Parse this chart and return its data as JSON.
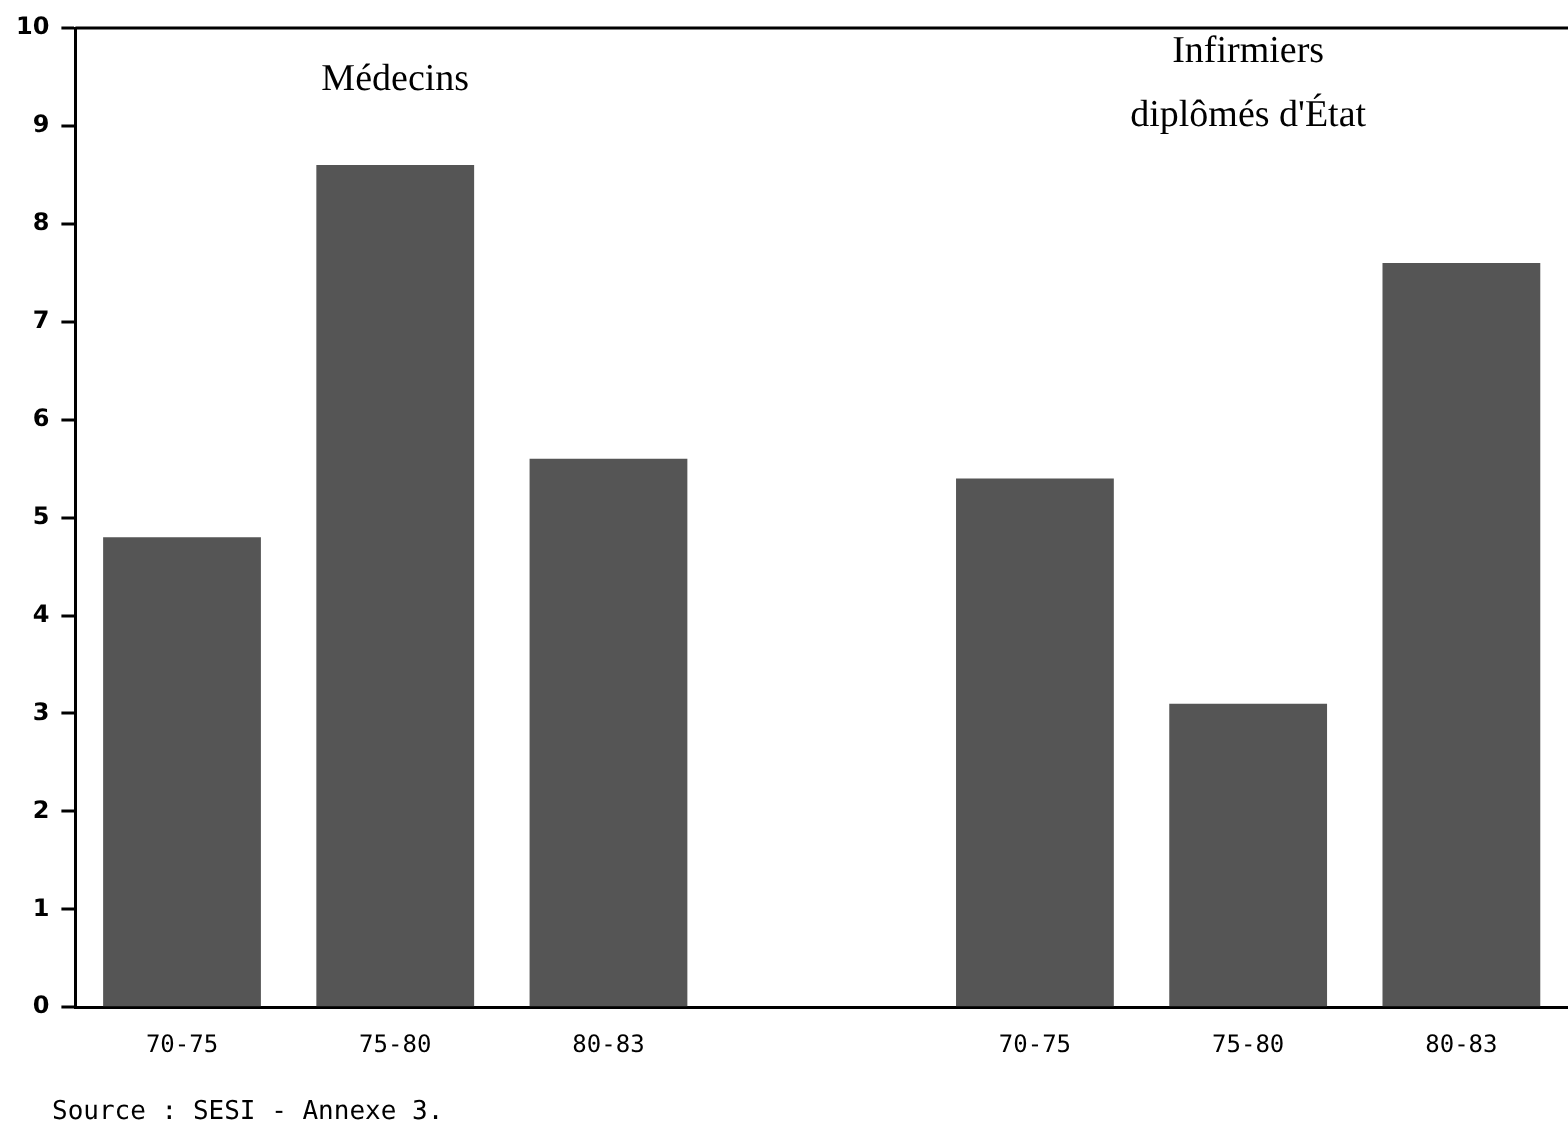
{
  "chart_data": {
    "type": "bar",
    "categories": [
      "70-75",
      "75-80",
      "80-83",
      null,
      "70-75",
      "75-80",
      "80-83"
    ],
    "values": [
      4.8,
      8.6,
      5.6,
      null,
      5.4,
      3.1,
      7.6
    ],
    "color": "#555555",
    "ylim": [
      0,
      10
    ],
    "yticks": [
      0,
      1,
      2,
      3,
      4,
      5,
      6,
      7,
      8,
      9,
      10
    ],
    "grid": false,
    "legend": false,
    "annotations": [
      "Médecins",
      "Infirmiers\ndiplômés d'État",
      "Source : SESI - Annexe 3."
    ]
  }
}
